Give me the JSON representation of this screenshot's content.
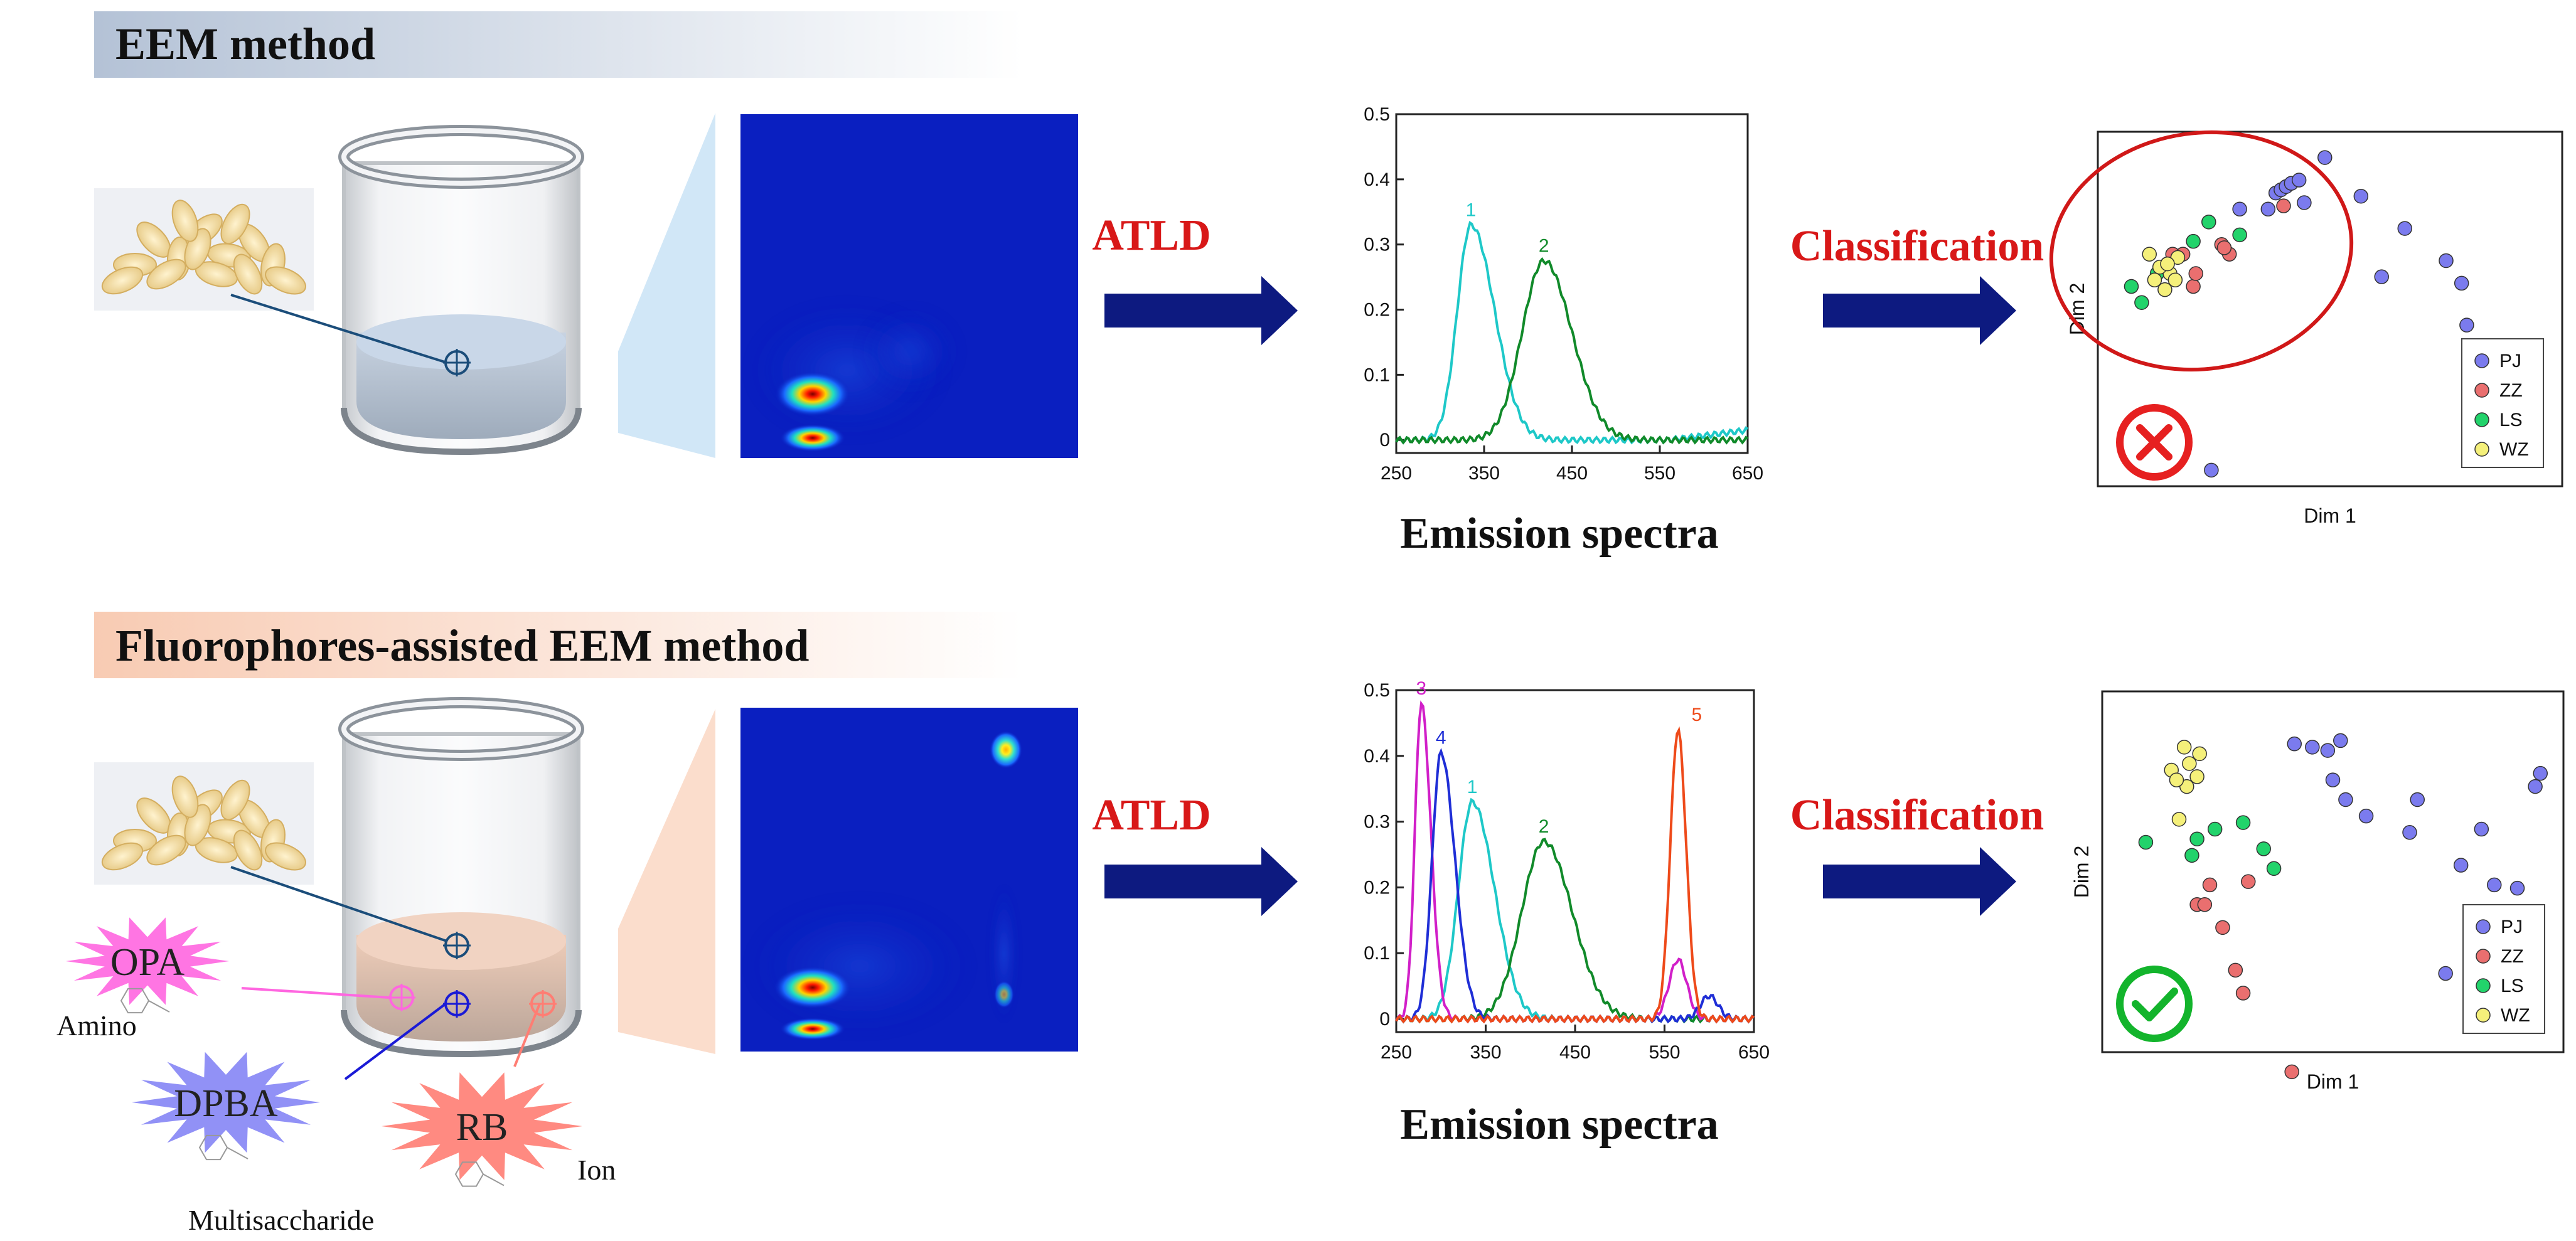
{
  "top": {
    "header": "EEM method",
    "arrow1": "ATLD",
    "arrow2": "Classification",
    "spectra_caption": "Emission spectra",
    "result_icon": "cross-icon"
  },
  "bottom": {
    "header": "Fluorophores-assisted EEM method",
    "arrow1": "ATLD",
    "arrow2": "Classification",
    "spectra_caption": "Emission spectra",
    "result_icon": "check-icon",
    "reagents": [
      {
        "name": "OPA",
        "target": "Amino",
        "color": "#ff66e0"
      },
      {
        "name": "DPBA",
        "target": "Multisaccharide",
        "color": "#8585f5"
      },
      {
        "name": "RB",
        "target": "Ion",
        "color": "#ff7d73"
      }
    ]
  },
  "colors": {
    "arrow": "#0d1a80",
    "accent_text": "#d81818",
    "pj": "#7b7bee",
    "zz": "#ea6f6f",
    "ls": "#22d36b",
    "wz": "#f5f07a"
  },
  "chart_data": [
    {
      "type": "line",
      "id": "top-spectra",
      "title": "",
      "xlabel": "",
      "ylabel": "",
      "xlim": [
        250,
        650
      ],
      "ylim": [
        -0.02,
        0.5
      ],
      "xticks": [
        250,
        350,
        450,
        550,
        650
      ],
      "yticks": [
        0,
        0.1,
        0.2,
        0.3,
        0.4,
        0.5
      ],
      "series": [
        {
          "name": "1",
          "color": "#1ec8c8",
          "peak": 335,
          "height": 0.33,
          "width_left": 22,
          "width_right": 38,
          "tail": [
            [
              550,
              0.0
            ],
            [
              600,
              0.01
            ],
            [
              650,
              0.015
            ]
          ]
        },
        {
          "name": "2",
          "color": "#118a2a",
          "peak": 418,
          "height": 0.275,
          "width_left": 35,
          "width_right": 45,
          "start": 320
        }
      ]
    },
    {
      "type": "line",
      "id": "bottom-spectra",
      "title": "",
      "xlabel": "",
      "ylabel": "",
      "xlim": [
        250,
        650
      ],
      "ylim": [
        -0.02,
        0.5
      ],
      "xticks": [
        250,
        350,
        450,
        550,
        650
      ],
      "yticks": [
        0,
        0.1,
        0.2,
        0.3,
        0.4,
        0.5
      ],
      "series": [
        {
          "name": "1",
          "color": "#1ec8c8",
          "peak": 335,
          "height": 0.33,
          "width_left": 22,
          "width_right": 35
        },
        {
          "name": "2",
          "color": "#118a2a",
          "peak": 415,
          "height": 0.27,
          "width_left": 35,
          "width_right": 45
        },
        {
          "name": "3",
          "color": "#d11fc8",
          "peak": 278,
          "height": 0.48,
          "width_left": 10,
          "width_right": 15,
          "bump": [
            565,
            0.09
          ]
        },
        {
          "name": "4",
          "color": "#1f2ed6",
          "peak": 300,
          "height": 0.405,
          "width_left": 14,
          "width_right": 22,
          "bump": [
            600,
            0.035
          ]
        },
        {
          "name": "5",
          "color": "#ee4a1a",
          "peak": 565,
          "height": 0.44,
          "width_left": 12,
          "width_right": 13
        }
      ]
    },
    {
      "type": "scatter",
      "id": "top-classification",
      "xlabel": "Dim 1",
      "ylabel": "Dim 2",
      "xlim": [
        0,
        100
      ],
      "ylim": [
        0,
        100
      ],
      "legend": [
        "PJ",
        "ZZ",
        "LS",
        "WZ"
      ],
      "points": {
        "PJ": [
          [
            55,
            86
          ],
          [
            66,
            86
          ],
          [
            69,
            91
          ],
          [
            71,
            92
          ],
          [
            73,
            93
          ],
          [
            75,
            94
          ],
          [
            78,
            95
          ],
          [
            80,
            88
          ],
          [
            88,
            102
          ],
          [
            102,
            90
          ],
          [
            119,
            80
          ],
          [
            110,
            65
          ],
          [
            135,
            70
          ],
          [
            143,
            50
          ],
          [
            141,
            63
          ],
          [
            44,
            5
          ]
        ],
        "ZZ": [
          [
            48,
            75
          ],
          [
            51,
            72
          ],
          [
            49,
            74
          ],
          [
            37,
            62
          ],
          [
            38,
            66
          ],
          [
            72,
            87
          ],
          [
            29,
            72
          ],
          [
            33,
            72
          ]
        ],
        "LS": [
          [
            37,
            76
          ],
          [
            43,
            82
          ],
          [
            55,
            78
          ],
          [
            27,
            69
          ],
          [
            23,
            66
          ],
          [
            17,
            57
          ],
          [
            13,
            62
          ]
        ],
        "WZ": [
          [
            26,
            61
          ],
          [
            28,
            66
          ],
          [
            30,
            64
          ],
          [
            31,
            71
          ],
          [
            24,
            68
          ],
          [
            20,
            72
          ],
          [
            22,
            64
          ],
          [
            27,
            69
          ]
        ]
      }
    },
    {
      "type": "scatter",
      "id": "bottom-classification",
      "xlabel": "Dim 1",
      "ylabel": "Dim 2",
      "xlim": [
        0,
        100
      ],
      "ylim": [
        0,
        100
      ],
      "legend": [
        "PJ",
        "ZZ",
        "LS",
        "WZ"
      ],
      "points": {
        "PJ": [
          [
            75,
            94
          ],
          [
            82,
            93
          ],
          [
            88,
            92
          ],
          [
            93,
            95
          ],
          [
            90,
            83
          ],
          [
            95,
            77
          ],
          [
            103,
            72
          ],
          [
            120,
            67
          ],
          [
            123,
            77
          ],
          [
            140,
            57
          ],
          [
            148,
            68
          ],
          [
            153,
            51
          ],
          [
            162,
            50
          ],
          [
            134,
            24
          ],
          [
            171,
            85
          ],
          [
            169,
            81
          ]
        ],
        "ZZ": [
          [
            37,
            45
          ],
          [
            40,
            45
          ],
          [
            42,
            51
          ],
          [
            47,
            38
          ],
          [
            52,
            25
          ],
          [
            57,
            52
          ],
          [
            55,
            18
          ],
          [
            74,
            -6
          ]
        ],
        "LS": [
          [
            17,
            64
          ],
          [
            35,
            60
          ],
          [
            37,
            65
          ],
          [
            44,
            68
          ],
          [
            55,
            70
          ],
          [
            63,
            62
          ],
          [
            67,
            56
          ]
        ],
        "WZ": [
          [
            27,
            86
          ],
          [
            32,
            93
          ],
          [
            34,
            88
          ],
          [
            38,
            91
          ],
          [
            33,
            81
          ],
          [
            37,
            84
          ],
          [
            29,
            83
          ],
          [
            30,
            71
          ]
        ]
      }
    }
  ]
}
